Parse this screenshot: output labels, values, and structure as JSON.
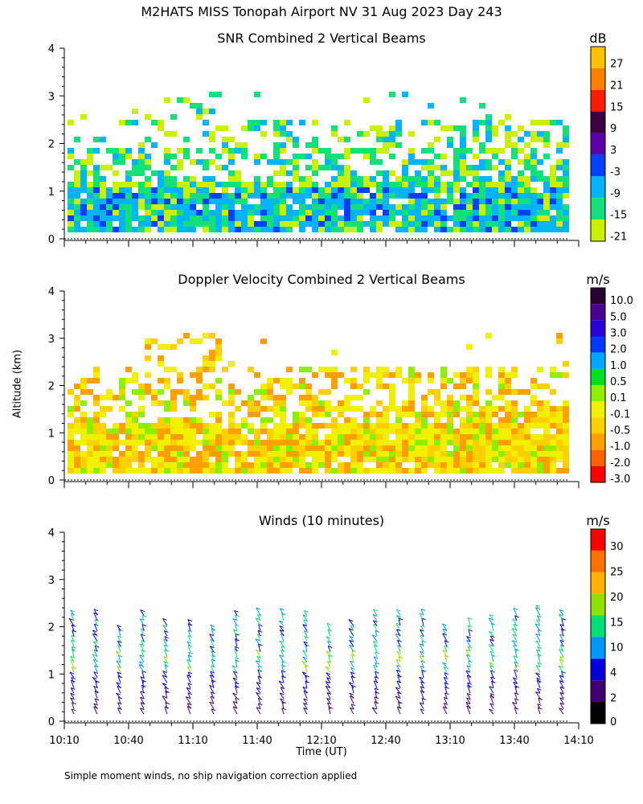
{
  "title": "M2HATS MISS Tonopah Airport NV  31 Aug 2023 Day 243",
  "y_axis_label": "Altitude (km)",
  "x_axis_label": "Time (UT)",
  "footnote": "Simple moment winds, no ship navigation correction applied",
  "chart_data": [
    {
      "type": "heatmap",
      "title": "SNR Combined 2 Vertical Beams",
      "colorbar_unit": "dB",
      "ylim": [
        0,
        4
      ],
      "y_ticks": [
        "0",
        "1",
        "2",
        "3",
        "4"
      ],
      "x_ticks": [
        "10:10",
        "10:40",
        "11:10",
        "11:40",
        "12:10",
        "12:40",
        "13:10",
        "13:40",
        "14:10"
      ],
      "colorbar": {
        "levels": [
          "27",
          "21",
          "15",
          "9",
          "3",
          "-3",
          "-9",
          "-15",
          "-21"
        ],
        "colors": [
          "#ffc000",
          "#ff8000",
          "#ff1a00",
          "#3d0040",
          "#5a00a8",
          "#0040ff",
          "#00b4ff",
          "#14e07a",
          "#c8f000"
        ]
      },
      "grid": false
    },
    {
      "type": "heatmap",
      "title": "Doppler Velocity Combined 2 Vertical Beams",
      "colorbar_unit": "m/s",
      "ylim": [
        0,
        4
      ],
      "y_ticks": [
        "0",
        "1",
        "2",
        "3",
        "4"
      ],
      "x_ticks": [
        "10:10",
        "10:40",
        "11:10",
        "11:40",
        "12:10",
        "12:40",
        "13:10",
        "13:40",
        "14:10"
      ],
      "colorbar": {
        "levels": [
          "10.0",
          "5.0",
          "3.0",
          "2.0",
          "1.0",
          "0.5",
          "0.1",
          "-0.1",
          "-0.5",
          "-1.0",
          "-2.0",
          "-3.0"
        ],
        "colors": [
          "#2a0030",
          "#4a0090",
          "#2a00d8",
          "#0038ff",
          "#00a8ff",
          "#00e020",
          "#8cf000",
          "#f0f000",
          "#ffd000",
          "#ffa000",
          "#ff6000",
          "#ff0000"
        ]
      },
      "grid": false
    },
    {
      "type": "scatter",
      "title": "Winds (10 minutes)",
      "colorbar_unit": "m/s",
      "ylim": [
        0,
        4
      ],
      "y_ticks": [
        "0",
        "1",
        "2",
        "3",
        "4"
      ],
      "x_ticks": [
        "10:10",
        "10:40",
        "11:10",
        "11:40",
        "12:10",
        "12:40",
        "13:10",
        "13:40",
        "14:10"
      ],
      "colorbar": {
        "levels": [
          "30",
          "25",
          "20",
          "15",
          "10",
          "4",
          "2",
          "0"
        ],
        "colors": [
          "#ff0000",
          "#ff7000",
          "#ffb000",
          "#90e000",
          "#00e070",
          "#0098ff",
          "#0000e0",
          "#400070",
          "#000000"
        ]
      },
      "grid": false
    }
  ]
}
